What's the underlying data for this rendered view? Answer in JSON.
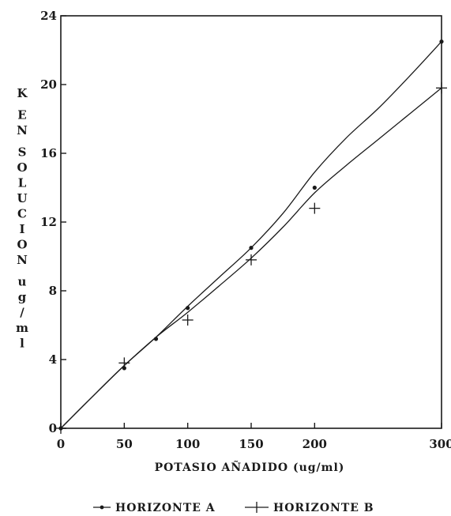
{
  "chart_data": {
    "type": "line",
    "xlabel": "POTASIO AÑADIDO (ug/ml)",
    "ylabel_lines": [
      "K",
      "EN",
      "SOLUCION",
      "ug/ml"
    ],
    "xlim": [
      0,
      300
    ],
    "ylim": [
      0,
      24
    ],
    "xticks": [
      "0",
      "50",
      "100",
      "150",
      "200",
      "300"
    ],
    "xtick_values": [
      0,
      50,
      100,
      150,
      200,
      300
    ],
    "yticks": [
      "0",
      "4",
      "8",
      "12",
      "16",
      "20",
      "24"
    ],
    "ytick_values": [
      0,
      4,
      8,
      12,
      16,
      20,
      24
    ],
    "grid": false,
    "legend_position": "bottom",
    "series": [
      {
        "name": "HORIZONTE A",
        "marker": "dot",
        "x": [
          0,
          50,
          75,
          100,
          150,
          200,
          300
        ],
        "y": [
          0,
          3.5,
          5.2,
          7.0,
          10.5,
          14.0,
          22.5
        ],
        "curve": [
          [
            0,
            0
          ],
          [
            25,
            1.85
          ],
          [
            50,
            3.65
          ],
          [
            75,
            5.3
          ],
          [
            100,
            7.1
          ],
          [
            125,
            8.8
          ],
          [
            150,
            10.5
          ],
          [
            175,
            12.5
          ],
          [
            200,
            14.9
          ],
          [
            225,
            16.9
          ],
          [
            250,
            18.6
          ],
          [
            275,
            20.5
          ],
          [
            300,
            22.5
          ]
        ]
      },
      {
        "name": "HORIZONTE B",
        "marker": "plus",
        "x": [
          0,
          50,
          100,
          150,
          200,
          300
        ],
        "y": [
          0,
          3.8,
          6.3,
          9.8,
          12.8,
          19.8
        ],
        "curve": [
          [
            0,
            0
          ],
          [
            25,
            1.85
          ],
          [
            50,
            3.65
          ],
          [
            75,
            5.3
          ],
          [
            100,
            6.75
          ],
          [
            125,
            8.3
          ],
          [
            150,
            9.9
          ],
          [
            175,
            11.7
          ],
          [
            200,
            13.7
          ],
          [
            225,
            15.3
          ],
          [
            250,
            16.8
          ],
          [
            275,
            18.3
          ],
          [
            300,
            19.8
          ]
        ]
      }
    ]
  }
}
